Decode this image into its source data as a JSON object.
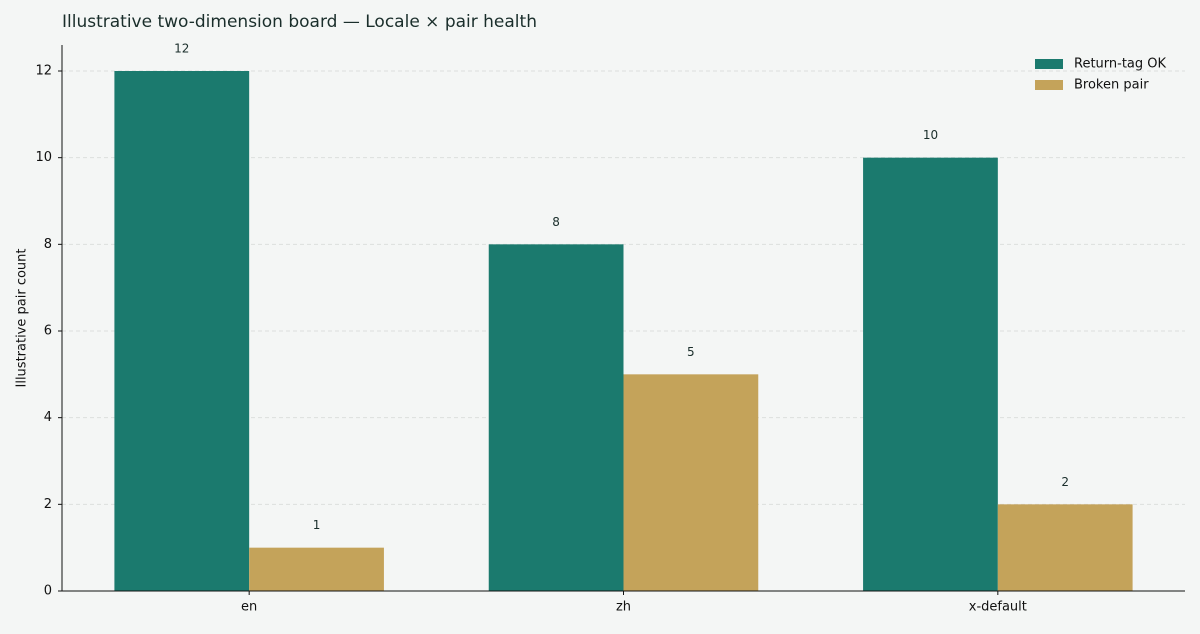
{
  "chart_data": {
    "type": "bar",
    "title": "Illustrative two-dimension board — Locale × pair health",
    "y_label": "Illustrative pair count",
    "categories": [
      "en",
      "zh",
      "x-default"
    ],
    "series": [
      {
        "name": "Return-tag OK",
        "color": "#1b7a6e",
        "values": [
          12,
          8,
          10
        ]
      },
      {
        "name": "Broken pair",
        "color": "#c4a35a",
        "values": [
          1,
          5,
          2
        ]
      }
    ],
    "ylim": [
      0,
      12.6
    ],
    "yticks": [
      0,
      2,
      4,
      6,
      8,
      10,
      12
    ],
    "grid": true,
    "legend": "upper right"
  }
}
